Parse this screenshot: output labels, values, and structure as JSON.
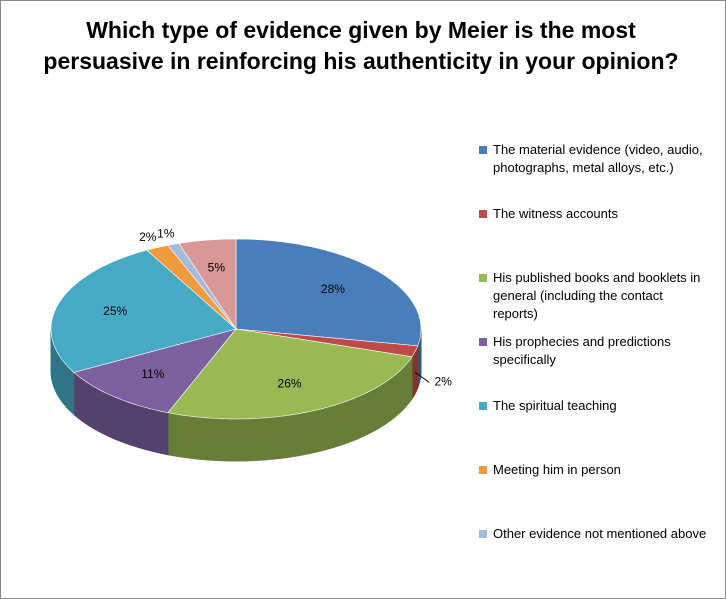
{
  "chart_data": {
    "type": "pie3d",
    "title": "Which type of evidence given by Meier is the most persuasive in reinforcing his authenticity in your opinion?",
    "categories": [
      "The material evidence (video, audio, photographs, metal alloys, etc.)",
      "The witness accounts",
      "His published books and booklets in general (including the contact reports)",
      "His prophecies and predictions specifically",
      "The spiritual teaching",
      "Meeting him in person",
      "Other evidence not mentioned above",
      null
    ],
    "values": [
      28,
      2,
      26,
      11,
      25,
      2,
      1,
      5
    ],
    "value_labels": [
      "28%",
      "2%",
      "26%",
      "11%",
      "25%",
      "2%",
      "1%",
      "5%"
    ],
    "colors": [
      "#4a7ebb",
      "#be4b48",
      "#98b954",
      "#7d60a0",
      "#46aac5",
      "#f09a3e",
      "#a5b9dd",
      "#d99795"
    ],
    "legend": "right"
  }
}
